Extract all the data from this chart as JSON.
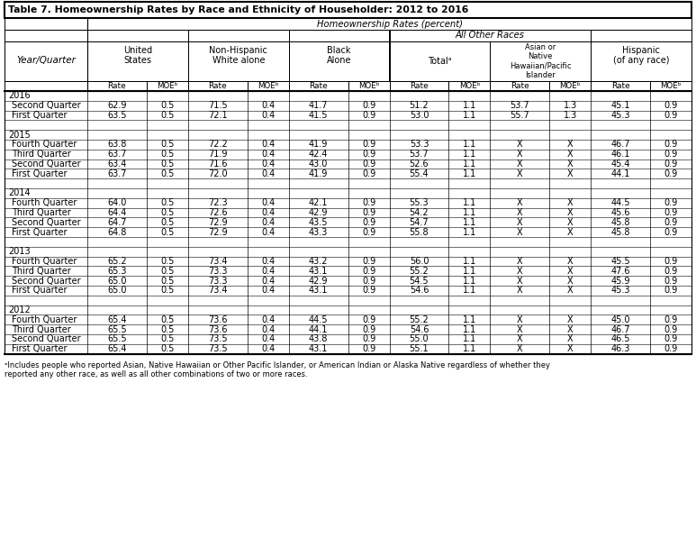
{
  "title": "Table 7. Homeownership Rates by Race and Ethnicity of Householder: 2012 to 2016",
  "header1": "Homeownership Rates (percent)",
  "header2_all_other": "All Other Races",
  "year_quarter_label": "Year/Quarter",
  "footnote_a": "ᵃIncludes people who reported Asian, Native Hawaiian or Other Pacific Islander, or American Indian or Alaska Native regardless of whether they\nreported any other race, as well as all other combinations of two or more races.",
  "rows": [
    {
      "label": "2016",
      "is_year": true,
      "data": null
    },
    {
      "label": "Second Quarter",
      "is_year": false,
      "data": [
        "62.9",
        "0.5",
        "71.5",
        "0.4",
        "41.7",
        "0.9",
        "51.2",
        "1.1",
        "53.7",
        "1.3",
        "45.1",
        "0.9"
      ]
    },
    {
      "label": "First Quarter",
      "is_year": false,
      "data": [
        "63.5",
        "0.5",
        "72.1",
        "0.4",
        "41.5",
        "0.9",
        "53.0",
        "1.1",
        "55.7",
        "1.3",
        "45.3",
        "0.9"
      ]
    },
    {
      "label": "",
      "is_year": false,
      "data": null
    },
    {
      "label": "2015",
      "is_year": true,
      "data": null
    },
    {
      "label": "Fourth Quarter",
      "is_year": false,
      "data": [
        "63.8",
        "0.5",
        "72.2",
        "0.4",
        "41.9",
        "0.9",
        "53.3",
        "1.1",
        "X",
        "X",
        "46.7",
        "0.9"
      ]
    },
    {
      "label": "Third Quarter",
      "is_year": false,
      "data": [
        "63.7",
        "0.5",
        "71.9",
        "0.4",
        "42.4",
        "0.9",
        "53.7",
        "1.1",
        "X",
        "X",
        "46.1",
        "0.9"
      ]
    },
    {
      "label": "Second Quarter",
      "is_year": false,
      "data": [
        "63.4",
        "0.5",
        "71.6",
        "0.4",
        "43.0",
        "0.9",
        "52.6",
        "1.1",
        "X",
        "X",
        "45.4",
        "0.9"
      ]
    },
    {
      "label": "First Quarter",
      "is_year": false,
      "data": [
        "63.7",
        "0.5",
        "72.0",
        "0.4",
        "41.9",
        "0.9",
        "55.4",
        "1.1",
        "X",
        "X",
        "44.1",
        "0.9"
      ]
    },
    {
      "label": "",
      "is_year": false,
      "data": null
    },
    {
      "label": "2014",
      "is_year": true,
      "data": null
    },
    {
      "label": "Fourth Quarter",
      "is_year": false,
      "data": [
        "64.0",
        "0.5",
        "72.3",
        "0.4",
        "42.1",
        "0.9",
        "55.3",
        "1.1",
        "X",
        "X",
        "44.5",
        "0.9"
      ]
    },
    {
      "label": "Third Quarter",
      "is_year": false,
      "data": [
        "64.4",
        "0.5",
        "72.6",
        "0.4",
        "42.9",
        "0.9",
        "54.2",
        "1.1",
        "X",
        "X",
        "45.6",
        "0.9"
      ]
    },
    {
      "label": "Second Quarter",
      "is_year": false,
      "data": [
        "64.7",
        "0.5",
        "72.9",
        "0.4",
        "43.5",
        "0.9",
        "54.7",
        "1.1",
        "X",
        "X",
        "45.8",
        "0.9"
      ]
    },
    {
      "label": "First Quarter",
      "is_year": false,
      "data": [
        "64.8",
        "0.5",
        "72.9",
        "0.4",
        "43.3",
        "0.9",
        "55.8",
        "1.1",
        "X",
        "X",
        "45.8",
        "0.9"
      ]
    },
    {
      "label": "",
      "is_year": false,
      "data": null
    },
    {
      "label": "2013",
      "is_year": true,
      "data": null
    },
    {
      "label": "Fourth Quarter",
      "is_year": false,
      "data": [
        "65.2",
        "0.5",
        "73.4",
        "0.4",
        "43.2",
        "0.9",
        "56.0",
        "1.1",
        "X",
        "X",
        "45.5",
        "0.9"
      ]
    },
    {
      "label": "Third Quarter",
      "is_year": false,
      "data": [
        "65.3",
        "0.5",
        "73.3",
        "0.4",
        "43.1",
        "0.9",
        "55.2",
        "1.1",
        "X",
        "X",
        "47.6",
        "0.9"
      ]
    },
    {
      "label": "Second Quarter",
      "is_year": false,
      "data": [
        "65.0",
        "0.5",
        "73.3",
        "0.4",
        "42.9",
        "0.9",
        "54.5",
        "1.1",
        "X",
        "X",
        "45.9",
        "0.9"
      ]
    },
    {
      "label": "First Quarter",
      "is_year": false,
      "data": [
        "65.0",
        "0.5",
        "73.4",
        "0.4",
        "43.1",
        "0.9",
        "54.6",
        "1.1",
        "X",
        "X",
        "45.3",
        "0.9"
      ]
    },
    {
      "label": "",
      "is_year": false,
      "data": null
    },
    {
      "label": "2012",
      "is_year": true,
      "data": null
    },
    {
      "label": "Fourth Quarter",
      "is_year": false,
      "data": [
        "65.4",
        "0.5",
        "73.6",
        "0.4",
        "44.5",
        "0.9",
        "55.2",
        "1.1",
        "X",
        "X",
        "45.0",
        "0.9"
      ]
    },
    {
      "label": "Third Quarter",
      "is_year": false,
      "data": [
        "65.5",
        "0.5",
        "73.6",
        "0.4",
        "44.1",
        "0.9",
        "54.6",
        "1.1",
        "X",
        "X",
        "46.7",
        "0.9"
      ]
    },
    {
      "label": "Second Quarter",
      "is_year": false,
      "data": [
        "65.5",
        "0.5",
        "73.5",
        "0.4",
        "43.8",
        "0.9",
        "55.0",
        "1.1",
        "X",
        "X",
        "46.5",
        "0.9"
      ]
    },
    {
      "label": "First Quarter",
      "is_year": false,
      "data": [
        "65.4",
        "0.5",
        "73.5",
        "0.4",
        "43.1",
        "0.9",
        "55.1",
        "1.1",
        "X",
        "X",
        "46.3",
        "0.9"
      ]
    }
  ],
  "col_labels": [
    "United\nStates",
    "Non-Hispanic\nWhite alone",
    "Black\nAlone",
    "Totalᵃ",
    "Asian or\nNative\nHawaiian/Pacific\nIslander",
    "Hispanic\n(of any race)"
  ]
}
